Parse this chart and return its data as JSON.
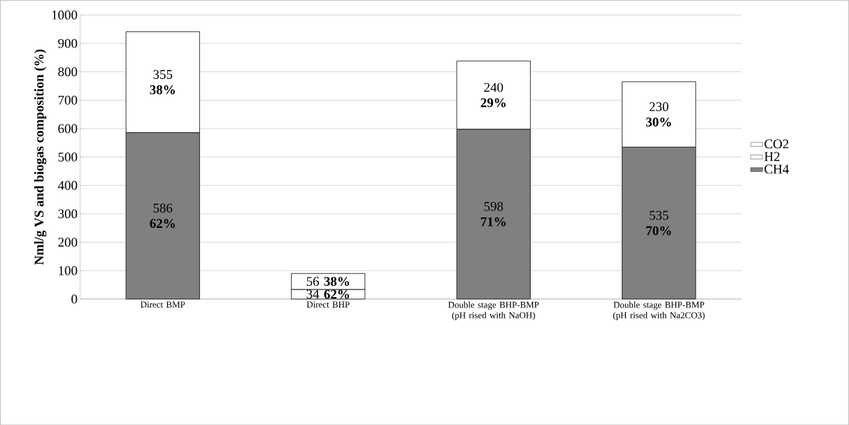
{
  "chart_data": {
    "type": "bar",
    "stacked": true,
    "ylabel": "Nml/g VS and biogas composition (%)",
    "categories": [
      "Direct BMP",
      "Direct BHP",
      "Double stage BHP-BMP (pH rised with NaOH)",
      "Double stage BHP-BMP (pH rised with Na2CO3)"
    ],
    "series": [
      {
        "name": "CH4",
        "color": "#808080",
        "values": [
          586,
          null,
          598,
          535
        ],
        "value_labels": [
          "586 **62%**",
          null,
          "598 **71%**",
          "535 **70%**"
        ]
      },
      {
        "name": "H2",
        "color": "#ffffff",
        "values": [
          null,
          34,
          null,
          null
        ],
        "value_labels": [
          null,
          "34 **62%**",
          null,
          null
        ]
      },
      {
        "name": "CO2",
        "color": "#ffffff",
        "values": [
          355,
          56,
          240,
          230
        ],
        "value_labels": [
          "355 **38%**",
          "56 **38%**",
          "240 **29%**",
          "230 **30%**"
        ]
      }
    ],
    "ylim": [
      0,
      1000
    ],
    "yticks": [
      0,
      100,
      200,
      300,
      400,
      500,
      600,
      700,
      800,
      900,
      1000
    ],
    "grid": "y",
    "legend": "right"
  }
}
